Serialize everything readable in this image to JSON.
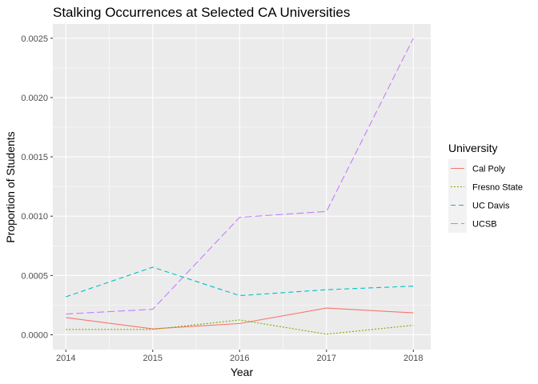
{
  "chart_data": {
    "type": "line",
    "title": "Stalking Occurrences at Selected CA Universities",
    "xlabel": "Year",
    "ylabel": "Proportion of Students",
    "x": [
      2014,
      2015,
      2016,
      2017,
      2018
    ],
    "xticks": [
      "2014",
      "2015",
      "2016",
      "2017",
      "2018"
    ],
    "yticks": [
      0,
      0.0005,
      0.001,
      0.0015,
      0.002,
      0.0025
    ],
    "ytick_labels": [
      "0.0000",
      "0.0005",
      "0.0010",
      "0.0015",
      "0.0020",
      "0.0025"
    ],
    "xlim": [
      2013.85,
      2018.2
    ],
    "ylim": [
      -0.000125,
      0.00262
    ],
    "grid": true,
    "legend_title": "University",
    "legend_position": "right",
    "series": [
      {
        "name": "Cal Poly",
        "values": [
          0.000145,
          5e-05,
          9.5e-05,
          0.000225,
          0.000185
        ],
        "color": "#F8766D",
        "linetype": "solid"
      },
      {
        "name": "Fresno State",
        "values": [
          4.5e-05,
          4.5e-05,
          0.000125,
          5e-06,
          8e-05
        ],
        "color": "#7CAE00",
        "linetype": "dotted"
      },
      {
        "name": "UC Davis",
        "values": [
          0.00032,
          0.00057,
          0.00033,
          0.00038,
          0.00041
        ],
        "color": "#00BFC4",
        "linetype": "dashed"
      },
      {
        "name": "UCSB",
        "values": [
          0.000175,
          0.000215,
          0.00099,
          0.00104,
          0.0025
        ],
        "color": "#C77CFF",
        "linetype": "longdash"
      }
    ]
  }
}
